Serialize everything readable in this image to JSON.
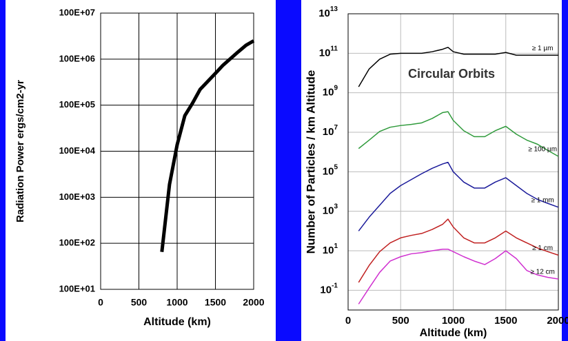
{
  "chart_data": [
    {
      "type": "line",
      "y_label": "Radiation Power  ergs/cm2-yr",
      "x_label": "Altitude (km)",
      "x": [
        800,
        900,
        1000,
        1100,
        1200,
        1300,
        1500,
        1600,
        1800,
        1900,
        2000
      ],
      "series": [
        {
          "color": "#000000",
          "values": [
            6500,
            190000,
            1380000,
            5900000,
            11000000,
            22000000,
            49000000,
            74000000,
            145000000,
            200000000,
            250000000
          ]
        }
      ],
      "xlim": [
        0,
        2000
      ],
      "xticks": [
        0,
        500,
        1000,
        1500,
        2000
      ],
      "ylim": [
        1000,
        1000000000
      ],
      "y_log": true,
      "grid": true,
      "yticks": [
        {
          "value": 1000,
          "label": "100E+01"
        },
        {
          "value": 10000,
          "label": "100E+02"
        },
        {
          "value": 100000,
          "label": "100E+03"
        },
        {
          "value": 1000000,
          "label": "100E+04"
        },
        {
          "value": 10000000,
          "label": "100E+05"
        },
        {
          "value": 100000000,
          "label": "100E+06"
        },
        {
          "value": 1000000000,
          "label": "100E+07"
        }
      ]
    },
    {
      "type": "line",
      "y_label": "Number of Particles / km Altitude",
      "x_label": "Altitude (km)",
      "annotation": "Circular Orbits",
      "x": [
        100,
        200,
        300,
        400,
        500,
        600,
        700,
        800,
        900,
        950,
        1000,
        1100,
        1200,
        1300,
        1400,
        1500,
        1600,
        1700,
        1800,
        1900,
        2000
      ],
      "series": [
        {
          "name": "≥ 1 µm",
          "color": "#000000",
          "values": [
            2000000000.0,
            16000000000.0,
            50000000000.0,
            90000000000.0,
            100000000000.0,
            100000000000.0,
            100000000000.0,
            120000000000.0,
            160000000000.0,
            200000000000.0,
            120000000000.0,
            90000000000.0,
            90000000000.0,
            90000000000.0,
            90000000000.0,
            110000000000.0,
            80000000000.0,
            80000000000.0,
            80000000000.0,
            80000000000.0,
            80000000000.0
          ]
        },
        {
          "name": "≥ 100 µm",
          "color": "#2e9a3a",
          "values": [
            1500000.0,
            4000000.0,
            11000000.0,
            18000000.0,
            22000000.0,
            25000000.0,
            30000000.0,
            50000000.0,
            100000000.0,
            110000000.0,
            40000000.0,
            12000000.0,
            6000000.0,
            6000000.0,
            12000000.0,
            20000000.0,
            8000000.0,
            4000000.0,
            2500000.0,
            1200000.0,
            600000.0
          ]
        },
        {
          "name": "≥ 1 mm",
          "color": "#1a1a9a",
          "values": [
            100,
            500,
            2000,
            8000,
            20000,
            40000,
            80000,
            150000,
            250000,
            300000,
            100000,
            30000,
            15000,
            15000,
            30000,
            50000,
            20000,
            8000,
            4000,
            2500,
            1600
          ]
        },
        {
          "name": "≥ 1 cm",
          "color": "#c02020",
          "values": [
            0.25,
            1.8,
            9,
            25,
            45,
            60,
            75,
            120,
            220,
            400,
            160,
            45,
            25,
            25,
            45,
            100,
            45,
            25,
            14,
            9,
            6
          ]
        },
        {
          "name": "≥ 12 cm",
          "color": "#d030d0",
          "values": [
            0.02,
            0.13,
            0.8,
            3,
            5,
            7,
            8,
            10,
            12,
            12,
            9,
            5,
            3,
            2,
            4,
            10,
            4,
            1,
            0.6,
            0.45,
            0.37
          ]
        }
      ],
      "xlim": [
        0,
        2000
      ],
      "xticks": [
        0,
        500,
        1000,
        1500,
        2000
      ],
      "ylim": [
        0.01,
        10000000000000.0
      ],
      "y_log": true,
      "grid": true,
      "yticks": [
        {
          "value": 0.1,
          "label": "10",
          "power": "-1"
        },
        {
          "value": 10,
          "label": "10",
          "power": "1"
        },
        {
          "value": 1000,
          "label": "10",
          "power": "3"
        },
        {
          "value": 100000,
          "label": "10",
          "power": "5"
        },
        {
          "value": 10000000,
          "label": "10",
          "power": "7"
        },
        {
          "value": 1000000000,
          "label": "10",
          "power": "9"
        },
        {
          "value": 100000000000,
          "label": "10",
          "power": "11"
        },
        {
          "value": 10000000000000,
          "label": "10",
          "power": "13"
        }
      ]
    }
  ]
}
